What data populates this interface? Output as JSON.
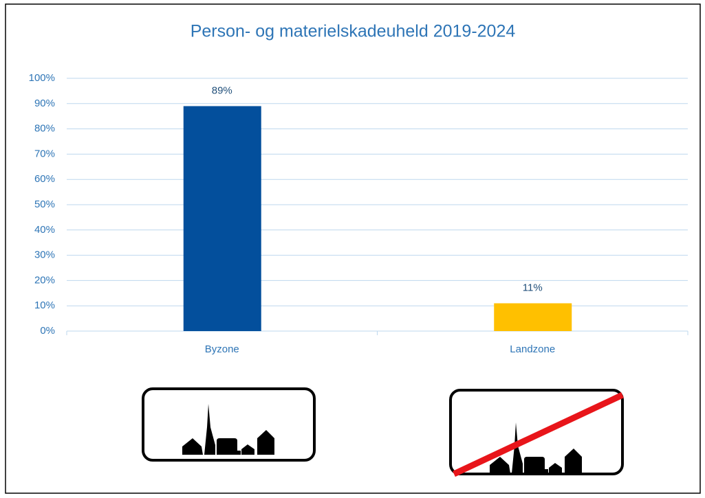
{
  "chart_data": {
    "type": "bar",
    "title": "Person- og materielskadeuheld 2019-2024",
    "categories": [
      "Byzone",
      "Landzone"
    ],
    "values": [
      89,
      11
    ],
    "value_labels": [
      "89%",
      "11%"
    ],
    "colors": [
      "#034f9c",
      "#ffc000"
    ],
    "ylim": [
      0,
      100
    ],
    "yticks": [
      {
        "value": 0,
        "label": "0%"
      },
      {
        "value": 10,
        "label": "10%"
      },
      {
        "value": 20,
        "label": "20%"
      },
      {
        "value": 30,
        "label": "30%"
      },
      {
        "value": 40,
        "label": "40%"
      },
      {
        "value": 50,
        "label": "50%"
      },
      {
        "value": 60,
        "label": "60%"
      },
      {
        "value": 70,
        "label": "70%"
      },
      {
        "value": 80,
        "label": "80%"
      },
      {
        "value": 90,
        "label": "90%"
      },
      {
        "value": 100,
        "label": "100%"
      }
    ],
    "grid": true
  }
}
